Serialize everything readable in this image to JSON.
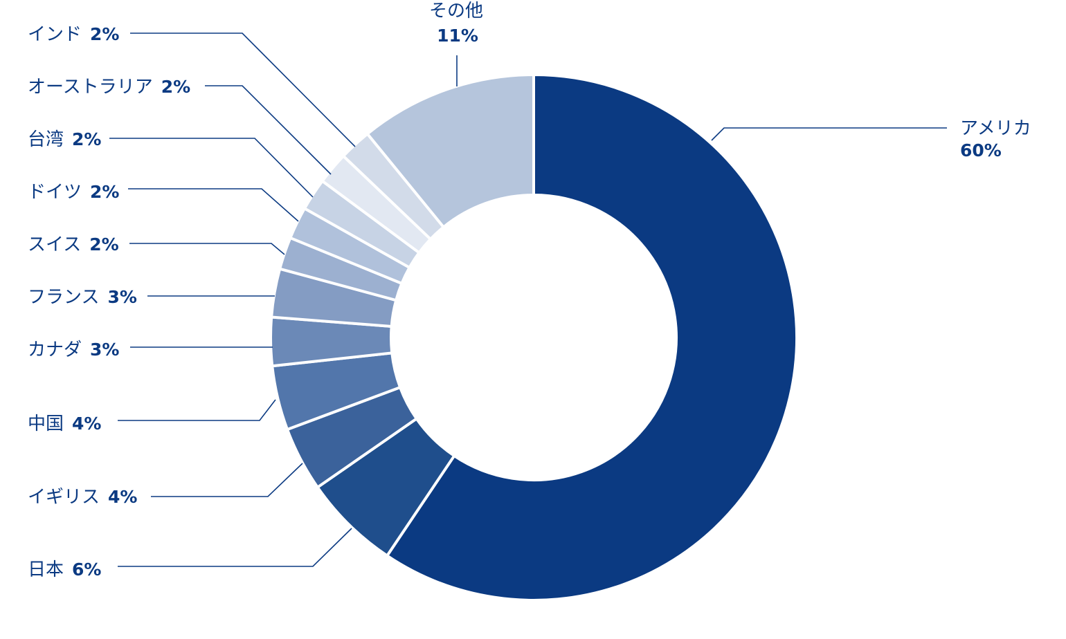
{
  "chart_data": {
    "type": "pie",
    "style": "donut",
    "title": "",
    "slices": [
      {
        "name": "アメリカ",
        "pct": "60%",
        "value": 60,
        "color": "#0b3a82"
      },
      {
        "name": "日本",
        "pct": "6%",
        "value": 6,
        "color": "#1f4e8c"
      },
      {
        "name": "イギリス",
        "pct": "4%",
        "value": 4,
        "color": "#3b629b"
      },
      {
        "name": "中国",
        "pct": "4%",
        "value": 4,
        "color": "#5276ab"
      },
      {
        "name": "カナダ",
        "pct": "3%",
        "value": 3,
        "color": "#6b89b7"
      },
      {
        "name": "フランス",
        "pct": "3%",
        "value": 3,
        "color": "#849cc3"
      },
      {
        "name": "スイス",
        "pct": "2%",
        "value": 2,
        "color": "#9cb0d0"
      },
      {
        "name": "ドイツ",
        "pct": "2%",
        "value": 2,
        "color": "#b0c1db"
      },
      {
        "name": "台湾",
        "pct": "2%",
        "value": 2,
        "color": "#c7d3e5"
      },
      {
        "name": "オーストラリア",
        "pct": "2%",
        "value": 2,
        "color": "#e2e8f2"
      },
      {
        "name": "インド",
        "pct": "2%",
        "value": 2,
        "color": "#d2dbe9"
      },
      {
        "name": "その他",
        "pct": "11%",
        "value": 11,
        "color": "#b5c5dc"
      }
    ]
  }
}
